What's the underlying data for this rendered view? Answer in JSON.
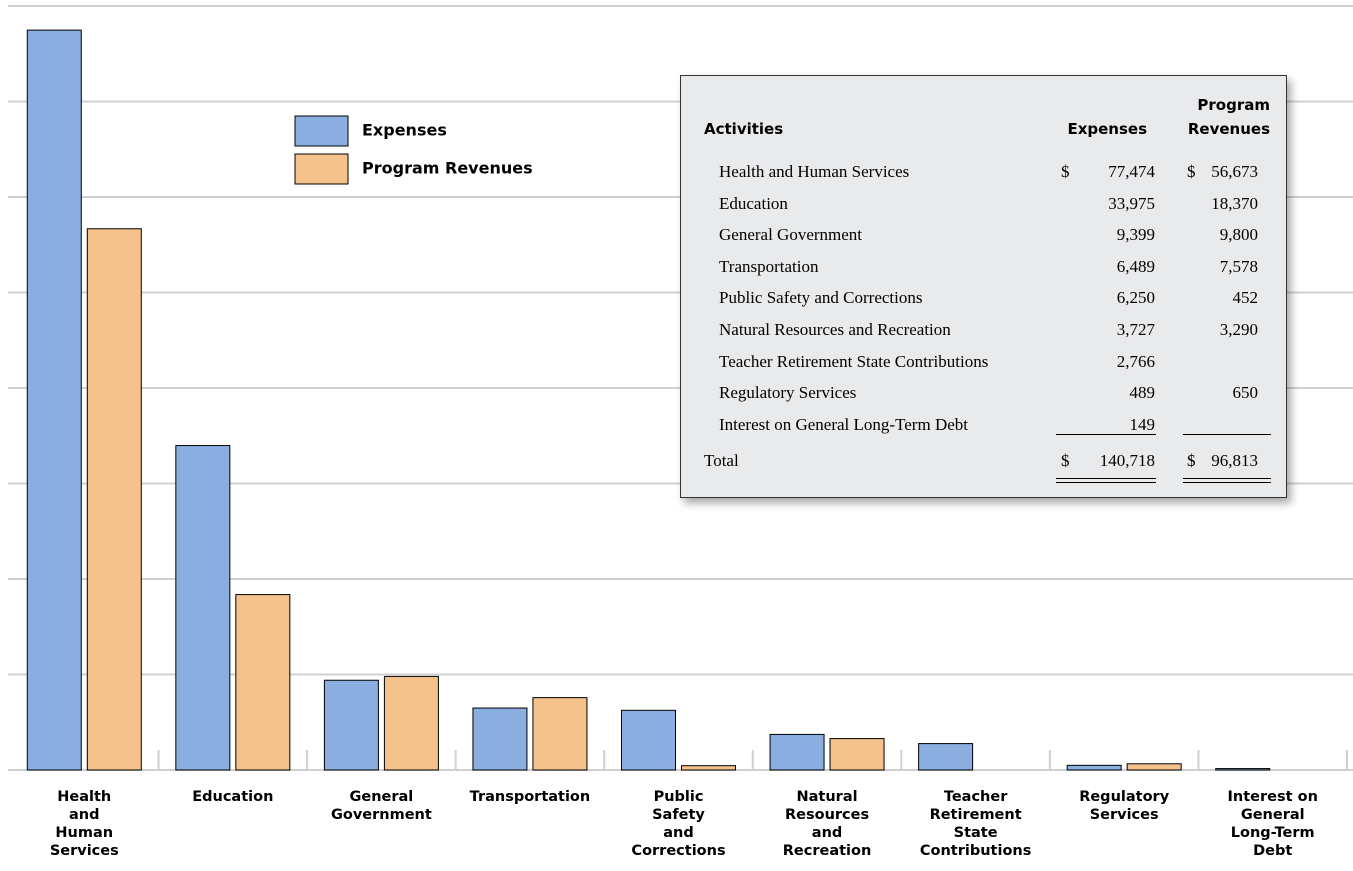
{
  "chart_data": {
    "type": "bar",
    "categories": [
      [
        "Health",
        "and",
        "Human",
        "Services"
      ],
      [
        "Education"
      ],
      [
        "General",
        "Government"
      ],
      [
        "Transportation"
      ],
      [
        "Public",
        "Safety",
        "and",
        "Corrections"
      ],
      [
        "Natural",
        "Resources",
        "and",
        "Recreation"
      ],
      [
        "Teacher",
        "Retirement",
        "State",
        "Contributions"
      ],
      [
        "Regulatory",
        "Services"
      ],
      [
        "Interest on",
        "General",
        "Long-Term",
        "Debt"
      ]
    ],
    "series": [
      {
        "name": "Expenses",
        "color": "#8aaedf",
        "values": [
          77474,
          33975,
          9399,
          6489,
          6250,
          3727,
          2766,
          489,
          149
        ]
      },
      {
        "name": "Program Revenues",
        "color": "#f5c28c",
        "values": [
          56673,
          18370,
          9800,
          7578,
          452,
          3290,
          null,
          650,
          null
        ]
      }
    ],
    "ylim": [
      0,
      80000
    ],
    "yticks": [
      0,
      10000,
      20000,
      30000,
      40000,
      50000,
      60000,
      70000,
      80000
    ],
    "grid": true
  },
  "table": {
    "header": [
      "Activities",
      "Expenses",
      "Program Revenues"
    ],
    "rows": [
      [
        "Health and Human Services",
        "$",
        "77,474",
        "$",
        "56,673"
      ],
      [
        "Education",
        null,
        "33,975",
        null,
        "18,370"
      ],
      [
        "General Government",
        null,
        "9,399",
        null,
        "9,800"
      ],
      [
        "Transportation",
        null,
        "6,489",
        null,
        "7,578"
      ],
      [
        "Public Safety and Corrections",
        null,
        "6,250",
        null,
        "452"
      ],
      [
        "Natural Resources and Recreation",
        null,
        "3,727",
        null,
        "3,290"
      ],
      [
        "Teacher Retirement State Contributions",
        null,
        "2,766",
        null,
        null
      ],
      [
        "Regulatory Services",
        null,
        "489",
        null,
        "650"
      ],
      [
        "Interest on General Long-Term Debt",
        null,
        "149",
        null,
        null
      ]
    ],
    "total": [
      "Total",
      "$",
      "140,718",
      "$",
      "96,813"
    ]
  }
}
